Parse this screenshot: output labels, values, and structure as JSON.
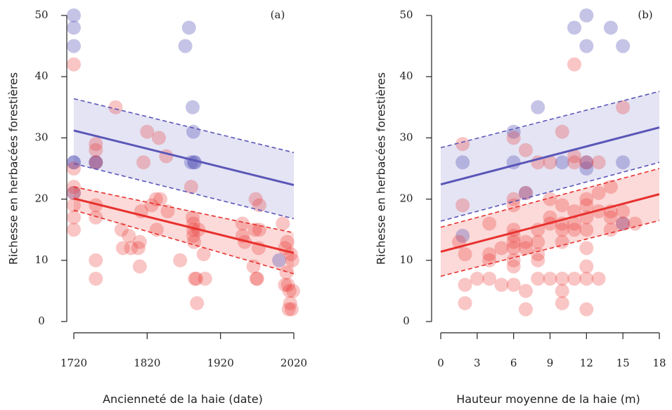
{
  "figure": {
    "panels_count": 2
  },
  "chart_data": [
    {
      "type": "scatter",
      "panel_label": "(a)",
      "xlabel": "Ancienneté de la haie (date)",
      "ylabel": "Richesse en herbacées forestières",
      "xlim": [
        1720,
        2020
      ],
      "ylim": [
        0,
        50
      ],
      "xticks": [
        1720,
        1820,
        1920,
        2020
      ],
      "yticks": [
        0,
        10,
        20,
        30,
        40,
        50
      ],
      "grid": false,
      "legend": "none",
      "series": [
        {
          "color": "#5a56b8",
          "points": [
            [
              1720,
              50
            ],
            [
              1720,
              48
            ],
            [
              1720,
              45
            ],
            [
              1720,
              26
            ],
            [
              1720,
              26
            ],
            [
              1720,
              21
            ],
            [
              1750,
              26
            ],
            [
              1750,
              26
            ],
            [
              1872,
              45
            ],
            [
              1877,
              48
            ],
            [
              1880,
              26
            ],
            [
              1882,
              35
            ],
            [
              1883,
              31
            ],
            [
              1884,
              26
            ],
            [
              1885,
              26
            ],
            [
              2000,
              10
            ]
          ],
          "fit": {
            "y_at_xmin": 31.2,
            "y_at_xmax": 22.3
          },
          "ci_lower": {
            "y_at_xmin": 25.8,
            "y_at_xmax": 16.8
          },
          "ci_upper": {
            "y_at_xmin": 36.4,
            "y_at_xmax": 27.6
          }
        },
        {
          "color": "#e8312e",
          "points": [
            [
              1720,
              42
            ],
            [
              1720,
              25
            ],
            [
              1720,
              22
            ],
            [
              1720,
              21
            ],
            [
              1720,
              19
            ],
            [
              1720,
              17
            ],
            [
              1720,
              15
            ],
            [
              1750,
              29
            ],
            [
              1750,
              28
            ],
            [
              1750,
              26
            ],
            [
              1750,
              19
            ],
            [
              1750,
              17
            ],
            [
              1750,
              10
            ],
            [
              1750,
              7
            ],
            [
              1777,
              35
            ],
            [
              1785,
              15
            ],
            [
              1787,
              12
            ],
            [
              1795,
              14
            ],
            [
              1798,
              12
            ],
            [
              1808,
              12
            ],
            [
              1810,
              9
            ],
            [
              1810,
              13
            ],
            [
              1812,
              18
            ],
            [
              1815,
              26
            ],
            [
              1820,
              31
            ],
            [
              1826,
              19
            ],
            [
              1832,
              20
            ],
            [
              1833,
              15
            ],
            [
              1836,
              30
            ],
            [
              1838,
              20
            ],
            [
              1846,
              27
            ],
            [
              1848,
              18
            ],
            [
              1865,
              10
            ],
            [
              1880,
              22
            ],
            [
              1882,
              17
            ],
            [
              1883,
              16
            ],
            [
              1883,
              15
            ],
            [
              1883,
              14
            ],
            [
              1884,
              13
            ],
            [
              1885,
              7
            ],
            [
              1887,
              7
            ],
            [
              1888,
              3
            ],
            [
              1890,
              15
            ],
            [
              1897,
              11
            ],
            [
              1899,
              7
            ],
            [
              1950,
              16
            ],
            [
              1950,
              14
            ],
            [
              1953,
              13
            ],
            [
              1965,
              9
            ],
            [
              1967,
              15
            ],
            [
              1968,
              20
            ],
            [
              1969,
              7
            ],
            [
              1970,
              7
            ],
            [
              1972,
              12
            ],
            [
              1973,
              19
            ],
            [
              1973,
              15
            ],
            [
              2005,
              16
            ],
            [
              2008,
              12
            ],
            [
              2008,
              6
            ],
            [
              2010,
              8
            ],
            [
              2011,
              13
            ],
            [
              2012,
              6
            ],
            [
              2013,
              2
            ],
            [
              2014,
              5
            ],
            [
              2015,
              3
            ],
            [
              2016,
              11
            ],
            [
              2017,
              2
            ],
            [
              2018,
              10
            ],
            [
              2019,
              5
            ]
          ],
          "fit": {
            "y_at_xmin": 20.1,
            "y_at_xmax": 11.2
          },
          "ci_lower": {
            "y_at_xmin": 18.2,
            "y_at_xmax": 7.8
          },
          "ci_upper": {
            "y_at_xmin": 22.0,
            "y_at_xmax": 14.5
          }
        }
      ]
    },
    {
      "type": "scatter",
      "panel_label": "(b)",
      "xlabel": "Hauteur moyenne de la haie (m)",
      "ylabel": "Richesse en herbacées forestières",
      "xlim": [
        0,
        18
      ],
      "ylim": [
        0,
        50
      ],
      "xticks": [
        0,
        3,
        6,
        9,
        12,
        15,
        18
      ],
      "yticks": [
        0,
        10,
        20,
        30,
        40,
        50
      ],
      "grid": false,
      "legend": "none",
      "series": [
        {
          "color": "#5a56b8",
          "points": [
            [
              1.8,
              26
            ],
            [
              1.8,
              14
            ],
            [
              6,
              31
            ],
            [
              6,
              26
            ],
            [
              7,
              21
            ],
            [
              8,
              35
            ],
            [
              11,
              48
            ],
            [
              12,
              50
            ],
            [
              12,
              45
            ],
            [
              12,
              26
            ],
            [
              12,
              25
            ],
            [
              14,
              48
            ],
            [
              15,
              45
            ],
            [
              15,
              26
            ],
            [
              15,
              16
            ],
            [
              10,
              26
            ]
          ],
          "fit": {
            "y_at_xmin": 22.4,
            "y_at_xmax": 31.7
          },
          "ci_lower": {
            "y_at_xmin": 16.4,
            "y_at_xmax": 26.0
          },
          "ci_upper": {
            "y_at_xmin": 28.4,
            "y_at_xmax": 37.6
          }
        },
        {
          "color": "#e8312e",
          "points": [
            [
              1.8,
              29
            ],
            [
              1.8,
              19
            ],
            [
              1.5,
              13
            ],
            [
              2,
              11
            ],
            [
              2,
              6
            ],
            [
              2,
              3
            ],
            [
              3,
              7
            ],
            [
              4,
              16
            ],
            [
              4,
              11
            ],
            [
              4,
              10
            ],
            [
              4,
              7
            ],
            [
              5,
              6
            ],
            [
              5,
              12
            ],
            [
              6,
              30
            ],
            [
              6,
              20
            ],
            [
              6,
              19
            ],
            [
              6,
              15
            ],
            [
              6,
              14
            ],
            [
              6,
              13
            ],
            [
              6,
              12
            ],
            [
              6,
              10
            ],
            [
              6,
              9
            ],
            [
              6,
              6
            ],
            [
              7,
              28
            ],
            [
              7,
              21
            ],
            [
              7,
              13
            ],
            [
              7,
              12
            ],
            [
              7,
              5
            ],
            [
              7,
              2
            ],
            [
              8,
              26
            ],
            [
              8,
              15
            ],
            [
              8,
              13
            ],
            [
              8,
              11
            ],
            [
              8,
              10
            ],
            [
              8,
              7
            ],
            [
              9,
              26
            ],
            [
              9,
              20
            ],
            [
              9,
              17
            ],
            [
              9,
              16
            ],
            [
              9,
              7
            ],
            [
              10,
              31
            ],
            [
              10,
              19
            ],
            [
              10,
              16
            ],
            [
              10,
              15
            ],
            [
              10,
              13
            ],
            [
              10,
              7
            ],
            [
              10,
              5
            ],
            [
              10,
              3
            ],
            [
              11,
              42
            ],
            [
              11,
              27
            ],
            [
              11,
              26
            ],
            [
              11,
              18
            ],
            [
              11,
              16
            ],
            [
              11,
              15
            ],
            [
              11,
              7
            ],
            [
              12,
              26
            ],
            [
              12,
              20
            ],
            [
              12,
              19
            ],
            [
              12,
              17
            ],
            [
              12,
              15
            ],
            [
              12,
              12
            ],
            [
              12,
              9
            ],
            [
              12,
              7
            ],
            [
              12,
              2
            ],
            [
              13,
              26
            ],
            [
              13,
              21
            ],
            [
              13,
              18
            ],
            [
              13,
              7
            ],
            [
              14,
              22
            ],
            [
              14,
              18
            ],
            [
              14,
              17
            ],
            [
              14,
              15
            ],
            [
              15,
              35
            ],
            [
              15,
              18
            ],
            [
              15,
              16
            ],
            [
              16,
              16
            ]
          ],
          "fit": {
            "y_at_xmin": 11.4,
            "y_at_xmax": 20.8
          },
          "ci_lower": {
            "y_at_xmin": 7.4,
            "y_at_xmax": 16.5
          },
          "ci_upper": {
            "y_at_xmin": 15.4,
            "y_at_xmax": 25.0
          }
        }
      ]
    }
  ]
}
